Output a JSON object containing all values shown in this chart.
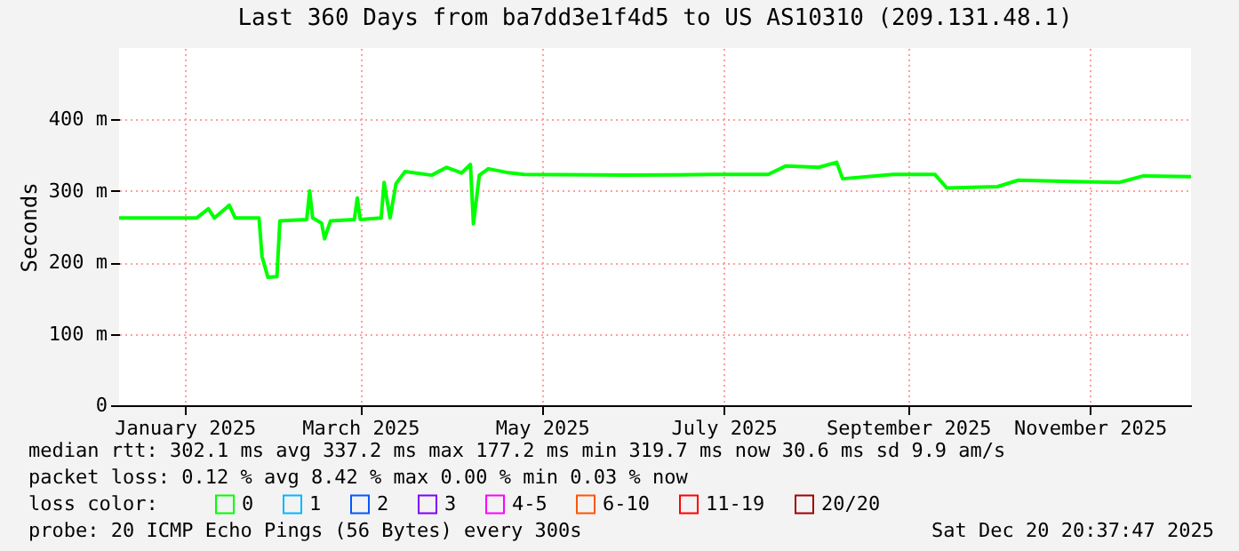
{
  "chart_data": {
    "type": "line",
    "title": "Last 360 Days from ba7dd3e1f4d5 to US AS10310 (209.131.48.1)",
    "ylabel": "Seconds",
    "x": [
      "2024-12-25",
      "2025-01-20",
      "2025-01-24",
      "2025-01-26",
      "2025-01-31",
      "2025-02-02",
      "2025-02-10",
      "2025-02-11",
      "2025-02-13",
      "2025-02-16",
      "2025-02-17",
      "2025-02-26",
      "2025-02-27",
      "2025-02-28",
      "2025-03-03",
      "2025-03-04",
      "2025-03-06",
      "2025-03-14",
      "2025-03-15",
      "2025-03-16",
      "2025-03-23",
      "2025-03-24",
      "2025-03-26",
      "2025-03-28",
      "2025-03-31",
      "2025-04-09",
      "2025-04-14",
      "2025-04-19",
      "2025-04-22",
      "2025-04-23",
      "2025-04-25",
      "2025-04-28",
      "2025-05-04",
      "2025-05-10",
      "2025-06-13",
      "2025-07-13",
      "2025-07-31",
      "2025-08-06",
      "2025-08-17",
      "2025-08-23",
      "2025-08-25",
      "2025-09-11",
      "2025-09-25",
      "2025-09-29",
      "2025-10-16",
      "2025-10-23",
      "2025-11-10",
      "2025-11-26",
      "2025-12-04",
      "2025-12-20"
    ],
    "series": [
      {
        "name": "0",
        "color": "#00ff00",
        "values": [
          262,
          262,
          275,
          262,
          280,
          262,
          262,
          208,
          179,
          180,
          258,
          260,
          300,
          262,
          255,
          233,
          258,
          260,
          290,
          260,
          262,
          312,
          262,
          310,
          327,
          322,
          333,
          325,
          337,
          254,
          322,
          331,
          326,
          323,
          322,
          323,
          323,
          335,
          333,
          340,
          317,
          323,
          323,
          304,
          306,
          315,
          313,
          312,
          321,
          320
        ]
      },
      {
        "name": "1",
        "color": "#00b8ff",
        "values": [
          null,
          null,
          null,
          null,
          null,
          null,
          null,
          null,
          null,
          null,
          null,
          null,
          null,
          null,
          null,
          null,
          null,
          null,
          null,
          null,
          null,
          null,
          null,
          null,
          null,
          null,
          null,
          null,
          null,
          null,
          null,
          null,
          null,
          null,
          null,
          null,
          null,
          null,
          null,
          null,
          null,
          null,
          null,
          null,
          null,
          null,
          null,
          null,
          null,
          null
        ]
      },
      {
        "name": "2",
        "color": "#0059ff",
        "values": [
          null,
          null,
          null,
          null,
          null,
          null,
          null,
          null,
          null,
          null,
          null,
          null,
          null,
          null,
          null,
          null,
          null,
          null,
          null,
          null,
          null,
          null,
          null,
          null,
          null,
          null,
          null,
          null,
          null,
          null,
          null,
          null,
          null,
          null,
          null,
          null,
          null,
          null,
          null,
          null,
          null,
          null,
          null,
          null,
          null,
          null,
          null,
          null,
          null,
          null
        ]
      },
      {
        "name": "3",
        "color": "#7e00ff",
        "values": [
          null,
          null,
          null,
          null,
          null,
          null,
          null,
          null,
          null,
          null,
          null,
          null,
          null,
          null,
          null,
          null,
          null,
          null,
          null,
          null,
          null,
          null,
          null,
          null,
          null,
          null,
          null,
          null,
          null,
          null,
          null,
          null,
          null,
          null,
          null,
          null,
          null,
          null,
          null,
          null,
          null,
          null,
          null,
          null,
          null,
          null,
          null,
          null,
          null,
          null
        ]
      },
      {
        "name": "4-5",
        "color": "#ff00ff",
        "values": [
          null,
          null,
          null,
          null,
          null,
          null,
          null,
          null,
          null,
          null,
          null,
          null,
          null,
          null,
          null,
          null,
          null,
          null,
          null,
          null,
          null,
          null,
          null,
          null,
          null,
          null,
          null,
          null,
          null,
          null,
          null,
          null,
          null,
          null,
          null,
          null,
          null,
          null,
          null,
          null,
          null,
          null,
          null,
          null,
          null,
          null,
          null,
          null,
          null,
          null
        ]
      },
      {
        "name": "6-10",
        "color": "#ff5500",
        "values": [
          null,
          null,
          null,
          null,
          null,
          null,
          null,
          null,
          null,
          null,
          null,
          null,
          null,
          null,
          null,
          null,
          null,
          null,
          null,
          null,
          null,
          null,
          null,
          null,
          null,
          null,
          null,
          null,
          null,
          null,
          null,
          null,
          null,
          null,
          null,
          null,
          null,
          null,
          null,
          null,
          null,
          null,
          null,
          null,
          null,
          null,
          null,
          null,
          null,
          null
        ]
      },
      {
        "name": "11-19",
        "color": "#ff0000",
        "values": [
          null,
          null,
          null,
          null,
          null,
          null,
          null,
          null,
          null,
          null,
          null,
          null,
          null,
          null,
          null,
          null,
          null,
          null,
          null,
          null,
          null,
          null,
          null,
          null,
          null,
          null,
          null,
          null,
          null,
          null,
          null,
          null,
          null,
          null,
          null,
          null,
          null,
          null,
          null,
          null,
          null,
          null,
          null,
          null,
          null,
          null,
          null,
          null,
          null,
          null
        ]
      },
      {
        "name": "20/20",
        "color": "#a10000",
        "values": [
          null,
          null,
          null,
          null,
          null,
          null,
          null,
          null,
          null,
          null,
          null,
          null,
          null,
          null,
          null,
          null,
          null,
          null,
          null,
          null,
          null,
          null,
          null,
          null,
          null,
          null,
          null,
          null,
          null,
          null,
          null,
          null,
          null,
          null,
          null,
          null,
          null,
          null,
          null,
          null,
          null,
          null,
          null,
          null,
          null,
          null,
          null,
          null,
          null,
          null
        ]
      }
    ],
    "legend_title": "loss color:",
    "legend": "bottom",
    "xlim": [
      "2024-12-25",
      "2025-12-20"
    ],
    "xticks": [
      {
        "value": "2025-01-16",
        "label": "January 2025"
      },
      {
        "value": "2025-03-16",
        "label": "March 2025"
      },
      {
        "value": "2025-05-16",
        "label": "May 2025"
      },
      {
        "value": "2025-07-16",
        "label": "July 2025"
      },
      {
        "value": "2025-09-16",
        "label": "September 2025"
      },
      {
        "value": "2025-11-16",
        "label": "November 2025"
      }
    ],
    "ylim": [
      0,
      500
    ],
    "yticks": [
      0,
      {
        "value": 100,
        "label": "100 m"
      },
      {
        "value": 200,
        "label": "200 m"
      },
      {
        "value": 300,
        "label": "300 m"
      },
      {
        "value": 400,
        "label": "400 m"
      }
    ],
    "grid": true,
    "annotations": [
      "median rtt:  302.1 ms avg  337.2 ms max  177.2 ms min  319.7 ms now  30.6 ms sd  9.9   am/s",
      "packet loss: 0.12 % avg  8.42 % max  0.00 % min  0.03 % now",
      "probe:       20 ICMP Echo Pings (56 Bytes) every 300s",
      "Sat Dec 20 20:37:47 2025"
    ]
  }
}
